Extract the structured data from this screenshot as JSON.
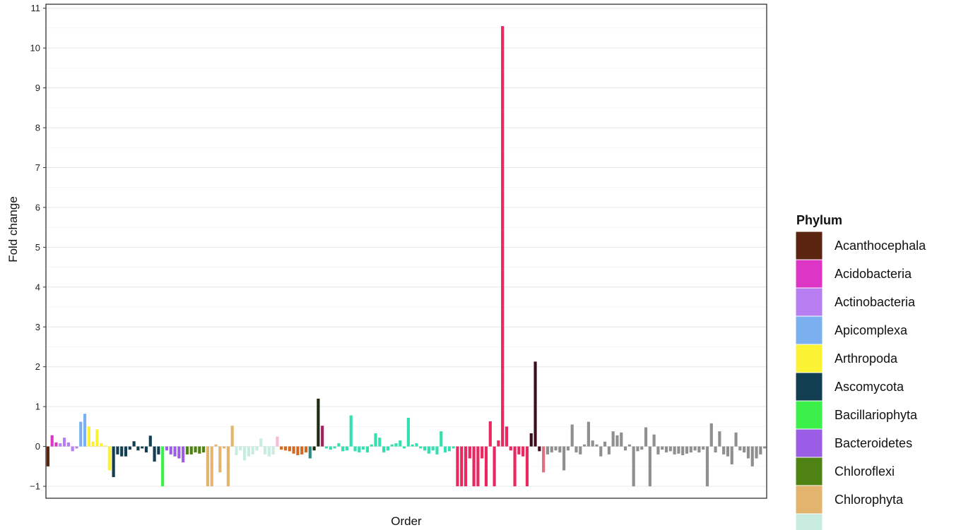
{
  "chart_data": {
    "type": "bar",
    "xlabel": "Order",
    "ylabel": "Fold change",
    "ylim": [
      -1.3,
      11.1
    ],
    "yticks": [
      -1,
      0,
      1,
      2,
      3,
      4,
      5,
      6,
      7,
      8,
      9,
      10,
      11
    ],
    "grid": true,
    "legend_position": "right",
    "legend": {
      "title": "Phylum",
      "entries": [
        {
          "label": "Acanthocephala",
          "color": "#5a2410"
        },
        {
          "label": "Acidobacteria",
          "color": "#dd35c6"
        },
        {
          "label": "Actinobacteria",
          "color": "#b67ef0"
        },
        {
          "label": "Apicomplexa",
          "color": "#7ab0f0"
        },
        {
          "label": "Arthropoda",
          "color": "#fbf233"
        },
        {
          "label": "Ascomycota",
          "color": "#123e52"
        },
        {
          "label": "Bacillariophyta",
          "color": "#3cf04a"
        },
        {
          "label": "Bacteroidetes",
          "color": "#9b5de5"
        },
        {
          "label": "Chloroflexi",
          "color": "#4e8212"
        },
        {
          "label": "Chlorophyta",
          "color": "#e2b46e"
        },
        {
          "label": "",
          "color": "#c9ece0"
        }
      ]
    },
    "groups": [
      {
        "color": "#5a2410",
        "values": [
          -0.5
        ]
      },
      {
        "color": "#dd35c6",
        "values": [
          0.28,
          0.1
        ]
      },
      {
        "color": "#b67ef0",
        "values": [
          0.08,
          0.22,
          0.1,
          -0.12,
          -0.05
        ]
      },
      {
        "color": "#7ab0f0",
        "values": [
          0.62,
          0.82
        ]
      },
      {
        "color": "#fbf233",
        "values": [
          0.5,
          0.12,
          0.43,
          0.08,
          0.0,
          -0.6
        ]
      },
      {
        "color": "#123e52",
        "values": [
          -0.77,
          -0.2,
          -0.25,
          -0.25,
          -0.08,
          0.13,
          -0.1,
          -0.05,
          -0.15,
          0.27,
          -0.38,
          -0.2
        ]
      },
      {
        "color": "#3cf04a",
        "values": [
          -1.0
        ]
      },
      {
        "color": "#9b5de5",
        "values": [
          -0.1,
          -0.2,
          -0.25,
          -0.3,
          -0.4
        ]
      },
      {
        "color": "#4e8212",
        "values": [
          -0.2,
          -0.2,
          -0.15,
          -0.18,
          -0.15
        ]
      },
      {
        "color": "#e2b46e",
        "values": [
          -1.0,
          -1.0,
          0.05,
          -0.65,
          -0.05,
          -1.0,
          0.52
        ]
      },
      {
        "color": "#c9ece0",
        "values": [
          -0.22,
          -0.1,
          -0.35,
          -0.25,
          -0.2,
          -0.1,
          0.2,
          -0.2,
          -0.25,
          -0.2
        ]
      },
      {
        "color": "#f6bdd6",
        "values": [
          0.25
        ]
      },
      {
        "color": "#d2691e",
        "values": [
          -0.08,
          -0.1,
          -0.12,
          -0.18,
          -0.22,
          -0.2,
          -0.15
        ]
      },
      {
        "color": "#2e8b84",
        "values": [
          -0.3
        ]
      },
      {
        "color": "#1e2b12",
        "values": [
          -0.1,
          1.2
        ]
      },
      {
        "color": "#a0205f",
        "values": [
          0.52
        ]
      },
      {
        "color": "#32e0b0",
        "values": [
          -0.05,
          -0.08,
          -0.05,
          0.08,
          -0.12,
          -0.1,
          0.78,
          -0.12,
          -0.15,
          -0.08,
          -0.15,
          0.05,
          0.33,
          0.22,
          -0.15,
          -0.1,
          0.05,
          0.08,
          0.15,
          -0.05,
          0.72,
          0.05,
          0.08,
          -0.05,
          -0.1,
          -0.18,
          -0.1,
          -0.2,
          0.38,
          -0.15,
          -0.12,
          -0.05
        ]
      },
      {
        "color": "#e8285f",
        "values": [
          -1.0,
          -1.0,
          -1.0,
          -0.3,
          -1.0,
          -1.0,
          -0.3,
          -1.0,
          0.63,
          -1.0,
          0.15,
          10.55,
          0.5,
          -0.1,
          -1.0,
          -0.2,
          -0.25,
          -1.0
        ]
      },
      {
        "color": "#3d0f1e",
        "values": [
          0.33,
          2.13,
          -0.12
        ]
      },
      {
        "color": "#e07080",
        "values": [
          -0.65
        ]
      },
      {
        "color": "#8f8f8f",
        "values": [
          -0.2,
          -0.15,
          -0.1,
          -0.15,
          -0.6,
          -0.1,
          0.55,
          -0.15,
          -0.2,
          0.05,
          0.62,
          0.15,
          0.05,
          -0.25,
          0.12,
          -0.2,
          0.38,
          0.28,
          0.35,
          -0.1,
          0.05,
          -1.0,
          -0.12,
          -0.08,
          0.48,
          -1.0,
          0.3,
          -0.2,
          -0.08,
          -0.15,
          -0.12,
          -0.2,
          -0.18,
          -0.22,
          -0.18,
          -0.15,
          -0.1,
          -0.15,
          -0.08,
          -1.0,
          0.58,
          -0.15,
          0.38,
          -0.2,
          -0.25,
          -0.45,
          0.35,
          -0.1,
          -0.15,
          -0.3,
          -0.5,
          -0.3,
          -0.2,
          -0.05
        ]
      }
    ]
  }
}
